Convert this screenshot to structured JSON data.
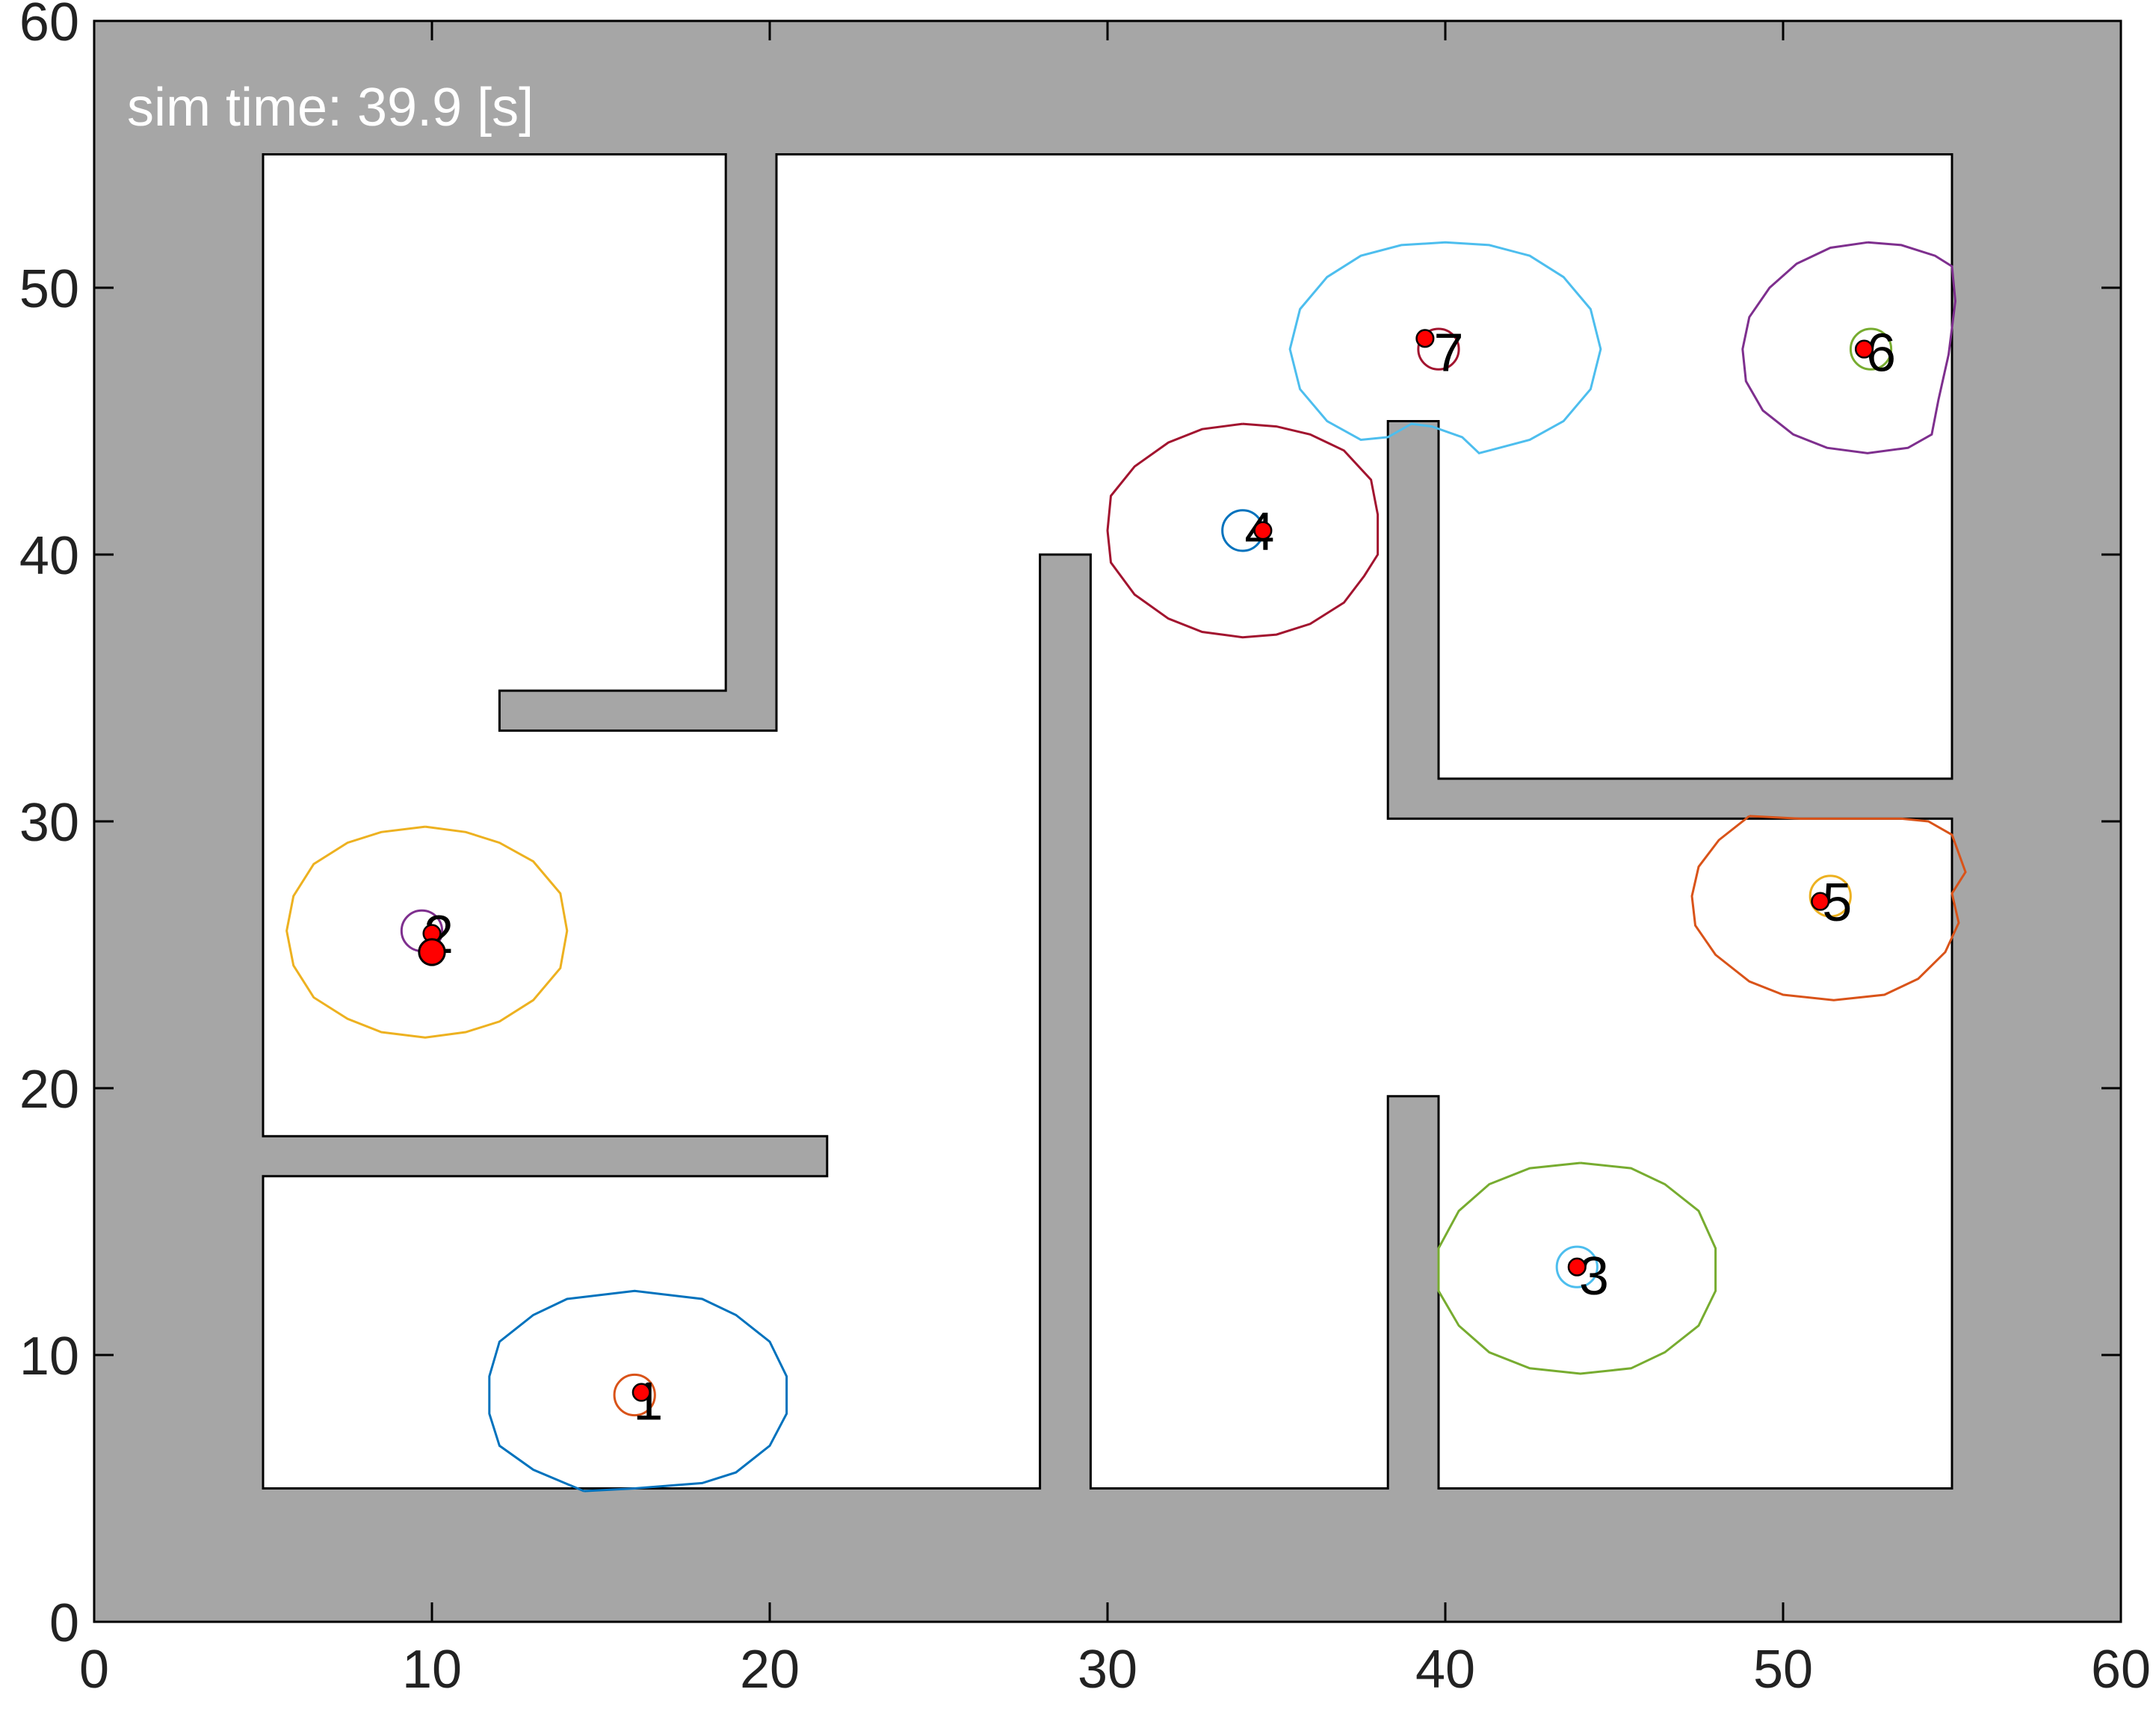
{
  "sim_time_label": "sim time: 39.9 [s]",
  "colors": {
    "wall": "#a6a6a6",
    "free": "#ffffff",
    "outline": "#000000",
    "robot": "#ff0000"
  },
  "axes": {
    "xlim": [
      0,
      60
    ],
    "ylim": [
      0,
      60
    ],
    "xticks": [
      0,
      10,
      20,
      30,
      40,
      50,
      60
    ],
    "yticks": [
      0,
      10,
      20,
      30,
      40,
      50,
      60
    ],
    "xtick_labels": [
      "0",
      "10",
      "20",
      "30",
      "40",
      "50",
      "60"
    ],
    "ytick_labels": [
      "0",
      "10",
      "20",
      "30",
      "40",
      "50",
      "60"
    ]
  },
  "free_space": [
    [
      [
        5,
        55
      ],
      [
        18.7,
        55
      ],
      [
        18.7,
        34.9
      ],
      [
        12,
        34.9
      ],
      [
        12,
        33.4
      ],
      [
        20.2,
        33.4
      ],
      [
        20.2,
        55
      ],
      [
        55,
        55
      ],
      [
        55,
        31.6
      ],
      [
        39.8,
        31.6
      ],
      [
        39.8,
        45
      ],
      [
        38.3,
        45
      ],
      [
        38.3,
        30.1
      ],
      [
        55,
        30.1
      ],
      [
        55,
        5
      ],
      [
        39.8,
        5
      ],
      [
        39.8,
        19.7
      ],
      [
        38.3,
        19.7
      ],
      [
        38.3,
        5
      ],
      [
        29.5,
        5
      ],
      [
        29.5,
        40
      ],
      [
        28,
        40
      ],
      [
        28,
        5
      ],
      [
        5,
        5
      ],
      [
        5,
        16.7
      ],
      [
        21.7,
        16.7
      ],
      [
        21.7,
        18.2
      ],
      [
        5,
        18.2
      ]
    ]
  ],
  "agents": [
    {
      "label": "1",
      "label_pos": [
        16.4,
        8.3
      ],
      "robot": [
        16.2,
        8.6
      ],
      "robot_r": 0.25,
      "goal_center": [
        16.0,
        8.5
      ],
      "goal_r": 0.6,
      "goal_color": "#d95319",
      "range_color": "#0072bd",
      "range": [
        [
          14.5,
          4.9
        ],
        [
          16.0,
          5.0
        ],
        [
          17.0,
          5.1
        ],
        [
          18.0,
          5.2
        ],
        [
          19.0,
          5.6
        ],
        [
          20.0,
          6.6
        ],
        [
          20.5,
          7.8
        ],
        [
          20.5,
          9.2
        ],
        [
          20.0,
          10.5
        ],
        [
          19.0,
          11.5
        ],
        [
          18.0,
          12.1
        ],
        [
          16.0,
          12.4
        ],
        [
          14.0,
          12.1
        ],
        [
          13.0,
          11.5
        ],
        [
          12.0,
          10.5
        ],
        [
          11.7,
          9.2
        ],
        [
          11.7,
          7.8
        ],
        [
          12.0,
          6.6
        ],
        [
          13.0,
          5.7
        ],
        [
          14.5,
          4.9
        ]
      ]
    },
    {
      "label": "2",
      "label_pos": [
        10.2,
        25.8
      ],
      "robot": [
        10.0,
        25.8
      ],
      "robot_r": 0.25,
      "goal_center": [
        9.7,
        25.9
      ],
      "goal_r": 0.6,
      "goal_color": "#7e2f8e",
      "range_color": "#edb120",
      "range": [
        [
          9.8,
          29.8
        ],
        [
          11.0,
          29.6
        ],
        [
          12.0,
          29.2
        ],
        [
          13.0,
          28.5
        ],
        [
          13.8,
          27.3
        ],
        [
          14.0,
          25.9
        ],
        [
          13.8,
          24.5
        ],
        [
          13.0,
          23.3
        ],
        [
          12.0,
          22.5
        ],
        [
          11.0,
          22.1
        ],
        [
          9.8,
          21.9
        ],
        [
          8.5,
          22.1
        ],
        [
          7.5,
          22.6
        ],
        [
          6.5,
          23.4
        ],
        [
          5.9,
          24.6
        ],
        [
          5.7,
          25.9
        ],
        [
          5.9,
          27.2
        ],
        [
          6.5,
          28.4
        ],
        [
          7.5,
          29.2
        ],
        [
          8.5,
          29.6
        ],
        [
          9.8,
          29.8
        ]
      ]
    },
    {
      "label": "3",
      "label_pos": [
        44.4,
        13.0
      ],
      "robot": [
        43.9,
        13.3
      ],
      "robot_r": 0.25,
      "goal_center": [
        43.9,
        13.3
      ],
      "goal_r": 0.6,
      "goal_color": "#4dbeee",
      "range_color": "#77ac30",
      "range": [
        [
          44.0,
          17.2
        ],
        [
          45.5,
          17.0
        ],
        [
          46.5,
          16.4
        ],
        [
          47.5,
          15.4
        ],
        [
          48.0,
          14.0
        ],
        [
          48.0,
          12.4
        ],
        [
          47.5,
          11.1
        ],
        [
          46.5,
          10.1
        ],
        [
          45.5,
          9.5
        ],
        [
          44.0,
          9.3
        ],
        [
          42.5,
          9.5
        ],
        [
          41.3,
          10.1
        ],
        [
          40.4,
          11.1
        ],
        [
          39.8,
          12.4
        ],
        [
          39.8,
          14.0
        ],
        [
          40.4,
          15.4
        ],
        [
          41.3,
          16.4
        ],
        [
          42.5,
          17.0
        ],
        [
          44.0,
          17.2
        ]
      ]
    },
    {
      "label": "4",
      "label_pos": [
        34.5,
        40.9
      ],
      "robot": [
        34.6,
        40.9
      ],
      "robot_r": 0.25,
      "goal_center": [
        34.0,
        40.9
      ],
      "goal_r": 0.6,
      "goal_color": "#0072bd",
      "range_color": "#a2142f",
      "range": [
        [
          34.0,
          44.9
        ],
        [
          35.0,
          44.8
        ],
        [
          36.0,
          44.5
        ],
        [
          37.0,
          43.9
        ],
        [
          37.8,
          42.8
        ],
        [
          38.0,
          41.5
        ],
        [
          38.0,
          40.0
        ],
        [
          37.6,
          39.2
        ],
        [
          37.0,
          38.2
        ],
        [
          36.0,
          37.4
        ],
        [
          35.0,
          37.0
        ],
        [
          34.0,
          36.9
        ],
        [
          32.8,
          37.1
        ],
        [
          31.8,
          37.6
        ],
        [
          30.8,
          38.5
        ],
        [
          30.1,
          39.7
        ],
        [
          30.0,
          40.9
        ],
        [
          30.1,
          42.2
        ],
        [
          30.8,
          43.3
        ],
        [
          31.8,
          44.2
        ],
        [
          32.8,
          44.7
        ],
        [
          34.0,
          44.9
        ]
      ]
    },
    {
      "label": "5",
      "label_pos": [
        51.6,
        27.0
      ],
      "robot": [
        51.1,
        27.0
      ],
      "robot_r": 0.25,
      "goal_center": [
        51.4,
        27.2
      ],
      "goal_r": 0.6,
      "goal_color": "#edb120",
      "range_color": "#d95319",
      "range": [
        [
          49.0,
          30.2
        ],
        [
          50.5,
          30.1
        ],
        [
          51.5,
          30.1
        ],
        [
          52.5,
          30.1
        ],
        [
          53.5,
          30.1
        ],
        [
          54.3,
          30.0
        ],
        [
          55.0,
          29.5
        ],
        [
          55.4,
          28.1
        ],
        [
          55.0,
          27.3
        ],
        [
          55.2,
          26.2
        ],
        [
          54.8,
          25.1
        ],
        [
          54.0,
          24.1
        ],
        [
          53.0,
          23.5
        ],
        [
          51.5,
          23.3
        ],
        [
          50.0,
          23.5
        ],
        [
          49.0,
          24.0
        ],
        [
          48.0,
          25.0
        ],
        [
          47.4,
          26.1
        ],
        [
          47.3,
          27.2
        ],
        [
          47.5,
          28.3
        ],
        [
          48.1,
          29.3
        ],
        [
          49.0,
          30.2
        ]
      ]
    },
    {
      "label": "6",
      "label_pos": [
        52.9,
        47.6
      ],
      "robot": [
        52.4,
        47.7
      ],
      "robot_r": 0.25,
      "goal_center": [
        52.6,
        47.7
      ],
      "goal_r": 0.6,
      "goal_color": "#77ac30",
      "range_color": "#7e2f8e",
      "range": [
        [
          52.5,
          51.7
        ],
        [
          53.5,
          51.6
        ],
        [
          54.5,
          51.2
        ],
        [
          55.0,
          50.8
        ],
        [
          55.1,
          49.5
        ],
        [
          54.9,
          47.5
        ],
        [
          54.6,
          45.8
        ],
        [
          54.4,
          44.5
        ],
        [
          53.7,
          44.0
        ],
        [
          52.5,
          43.8
        ],
        [
          51.3,
          44.0
        ],
        [
          50.3,
          44.5
        ],
        [
          49.4,
          45.4
        ],
        [
          48.9,
          46.5
        ],
        [
          48.8,
          47.7
        ],
        [
          49.0,
          48.9
        ],
        [
          49.6,
          50.0
        ],
        [
          50.4,
          50.9
        ],
        [
          51.4,
          51.5
        ],
        [
          52.5,
          51.7
        ]
      ]
    },
    {
      "label": "7",
      "label_pos": [
        40.1,
        47.6
      ],
      "robot": [
        39.4,
        48.1
      ],
      "robot_r": 0.25,
      "goal_center": [
        39.8,
        47.7
      ],
      "goal_r": 0.6,
      "goal_color": "#a2142f",
      "range_color": "#4dbeee",
      "range": [
        [
          41.3,
          43.9
        ],
        [
          42.5,
          44.3
        ],
        [
          43.5,
          45.0
        ],
        [
          44.3,
          46.2
        ],
        [
          44.6,
          47.7
        ],
        [
          44.3,
          49.2
        ],
        [
          43.5,
          50.4
        ],
        [
          42.5,
          51.2
        ],
        [
          41.3,
          51.6
        ],
        [
          40.0,
          51.7
        ],
        [
          38.7,
          51.6
        ],
        [
          37.5,
          51.2
        ],
        [
          36.5,
          50.4
        ],
        [
          35.7,
          49.2
        ],
        [
          35.4,
          47.7
        ],
        [
          35.7,
          46.2
        ],
        [
          36.5,
          45.0
        ],
        [
          37.5,
          44.3
        ],
        [
          38.3,
          44.4
        ],
        [
          39.0,
          44.9
        ],
        [
          39.6,
          44.8
        ],
        [
          40.5,
          44.4
        ],
        [
          41.0,
          43.8
        ],
        [
          41.3,
          43.9
        ]
      ]
    }
  ]
}
